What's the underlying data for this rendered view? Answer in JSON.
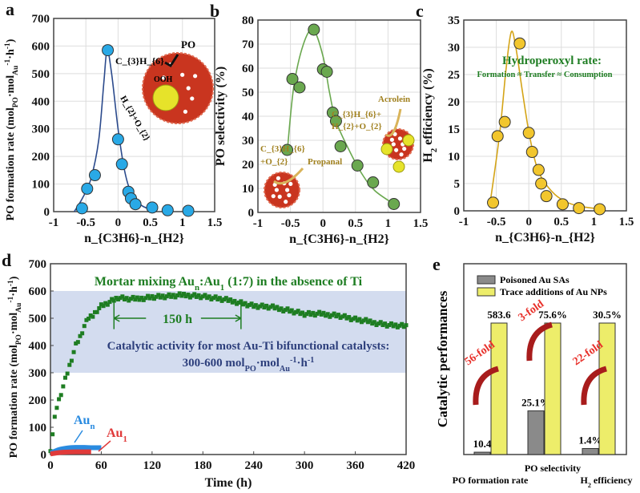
{
  "panel_labels": [
    "a",
    "b",
    "c",
    "d",
    "e"
  ],
  "colors": {
    "a": "#29a9e6",
    "a_line": "#2b4a8c",
    "b": "#6aa84f",
    "b_line": "#6aa84f",
    "c": "#f2c62d",
    "c_line": "#d4a417",
    "d_green": "#1e7d22",
    "d_blue": "#2a8be0",
    "d_red": "#e03a3a",
    "band": "#d3dcef",
    "band_text": "#2d3f7c",
    "fold_text": "#e8302a",
    "e_gray": "#8a8a8a",
    "e_yellow": "#eded6a"
  },
  "chart_data": [
    {
      "id": "a",
      "type": "scatter",
      "xlabel": "n_{C3H6}-n_{H2}",
      "ylabel": "PO formation rate (mol_{PO}·mol_{Au}^{-1}·h^{-1})",
      "xlim": [
        -1,
        1.5
      ],
      "ylim": [
        0,
        700
      ],
      "grid": true,
      "xticks": [
        "-1",
        "-0.5",
        "0",
        "0.5",
        "1",
        "1.5"
      ],
      "yticks": [
        "0",
        "100",
        "200",
        "300",
        "400",
        "500",
        "600",
        "700"
      ],
      "points": [
        [
          -0.56,
          12
        ],
        [
          -0.48,
          83
        ],
        [
          -0.36,
          132
        ],
        [
          -0.16,
          585
        ],
        [
          0,
          262
        ],
        [
          0.06,
          172
        ],
        [
          0.16,
          72
        ],
        [
          0.2,
          48
        ],
        [
          0.27,
          27
        ],
        [
          0.53,
          15
        ],
        [
          0.77,
          5
        ],
        [
          1.09,
          3
        ]
      ],
      "fit": [
        [
          -0.68,
          0
        ],
        [
          -0.55,
          50
        ],
        [
          -0.42,
          120
        ],
        [
          -0.3,
          260
        ],
        [
          -0.22,
          470
        ],
        [
          -0.17,
          585
        ],
        [
          -0.1,
          500
        ],
        [
          0,
          300
        ],
        [
          0.1,
          150
        ],
        [
          0.2,
          70
        ],
        [
          0.35,
          25
        ],
        [
          0.5,
          8
        ]
      ],
      "annotations": [
        "C_{3}H_{6}",
        "PO",
        "OOH",
        "H_{2}+O_{2}"
      ]
    },
    {
      "id": "b",
      "type": "scatter",
      "xlabel": "n_{C3H6}-n_{H2}",
      "ylabel": "PO selectivity (%)",
      "xlim": [
        -1,
        1.5
      ],
      "ylim": [
        0,
        80
      ],
      "grid": true,
      "xticks": [
        "-1",
        "-0.5",
        "0",
        "0.5",
        "1",
        "1.5"
      ],
      "yticks": [
        "0",
        "10",
        "20",
        "30",
        "40",
        "50",
        "60",
        "70",
        "80"
      ],
      "points": [
        [
          -0.55,
          26
        ],
        [
          -0.47,
          55.5
        ],
        [
          -0.36,
          52
        ],
        [
          -0.14,
          76
        ],
        [
          0,
          59.5
        ],
        [
          0.06,
          58.5
        ],
        [
          0.15,
          41.5
        ],
        [
          0.2,
          38
        ],
        [
          0.27,
          27.5
        ],
        [
          0.53,
          19.5
        ],
        [
          0.77,
          12.5
        ],
        [
          1.09,
          3.5
        ]
      ],
      "fit": [
        [
          -0.55,
          25
        ],
        [
          -0.45,
          52
        ],
        [
          -0.3,
          70
        ],
        [
          -0.15,
          76
        ],
        [
          0,
          65
        ],
        [
          0.1,
          50
        ],
        [
          0.2,
          38
        ],
        [
          0.4,
          26
        ],
        [
          0.6,
          16
        ],
        [
          0.8,
          9
        ],
        [
          1.09,
          3.5
        ]
      ],
      "annotations": [
        "C_{3}H_{6}",
        "+O_{2}",
        "Propanal",
        "C_{3}H_{6}+",
        "H_{2}+O_{2}",
        "Acrolein"
      ]
    },
    {
      "id": "c",
      "type": "scatter",
      "xlabel": "n_{C3H6}-n_{H2}",
      "ylabel": "H_{2} efficiency (%)",
      "xlim": [
        -1,
        1.5
      ],
      "ylim": [
        0,
        35
      ],
      "grid": true,
      "xticks": [
        "-1",
        "-0.5",
        "0",
        "0.5",
        "1",
        "1.5"
      ],
      "yticks": [
        "0",
        "5",
        "10",
        "15",
        "20",
        "25",
        "30",
        "35"
      ],
      "points": [
        [
          -0.55,
          1.5
        ],
        [
          -0.48,
          13.7
        ],
        [
          -0.37,
          16.3
        ],
        [
          -0.14,
          30.7
        ],
        [
          0,
          14.3
        ],
        [
          0.05,
          10.8
        ],
        [
          0.15,
          7.5
        ],
        [
          0.19,
          5
        ],
        [
          0.27,
          2.7
        ],
        [
          0.52,
          1.2
        ],
        [
          0.77,
          0.5
        ],
        [
          1.09,
          0.3
        ]
      ],
      "fit": [
        [
          -0.6,
          1
        ],
        [
          -0.45,
          14
        ],
        [
          -0.35,
          26
        ],
        [
          -0.27,
          32.8
        ],
        [
          -0.2,
          30
        ],
        [
          -0.1,
          22
        ],
        [
          0,
          14.5
        ],
        [
          0.1,
          9
        ],
        [
          0.2,
          6
        ],
        [
          0.4,
          3
        ],
        [
          0.6,
          1.5
        ],
        [
          0.8,
          0.8
        ],
        [
          1.05,
          0.4
        ]
      ],
      "annotations": [
        "Hydroperoxyl rate:",
        "Formation ≈ Transfer ≈ Consumption"
      ]
    },
    {
      "id": "d",
      "type": "scatter",
      "xlabel": "Time (h)",
      "ylabel": "PO formation rate (mol_{PO}·mol_{Au}^{-1}·h^{-1})",
      "xlim": [
        0,
        420
      ],
      "ylim": [
        0,
        700
      ],
      "grid": false,
      "xticks": [
        "0",
        "60",
        "120",
        "180",
        "240",
        "300",
        "360",
        "420"
      ],
      "yticks": [
        "0",
        "100",
        "200",
        "300",
        "400",
        "500",
        "600",
        "700"
      ],
      "band": [
        300,
        600
      ],
      "series": [
        {
          "name": "Mortar mixing Au_{n}:Au_{1} (1:7) in the absence of Ti",
          "values": [
            [
              0,
              20
            ],
            [
              2,
              65
            ],
            [
              4,
              105
            ],
            [
              6,
              160
            ],
            [
              10,
              200
            ],
            [
              15,
              250
            ],
            [
              20,
              300
            ],
            [
              25,
              350
            ],
            [
              30,
              400
            ],
            [
              35,
              430
            ],
            [
              40,
              470
            ],
            [
              45,
              500
            ],
            [
              50,
              510
            ],
            [
              55,
              530
            ],
            [
              60,
              545
            ],
            [
              70,
              560
            ],
            [
              80,
              575
            ],
            [
              90,
              570
            ],
            [
              100,
              570
            ],
            [
              120,
              578
            ],
            [
              140,
              580
            ],
            [
              160,
              585
            ],
            [
              180,
              580
            ],
            [
              200,
              570
            ],
            [
              220,
              560
            ],
            [
              240,
              545
            ],
            [
              260,
              540
            ],
            [
              280,
              530
            ],
            [
              300,
              515
            ],
            [
              320,
              515
            ],
            [
              340,
              510
            ],
            [
              360,
              495
            ],
            [
              380,
              485
            ],
            [
              400,
              475
            ],
            [
              420,
              470
            ]
          ]
        },
        {
          "name": "Au_{n}",
          "values": [
            [
              0,
              5
            ],
            [
              10,
              18
            ],
            [
              20,
              24
            ],
            [
              30,
              26
            ],
            [
              40,
              26
            ],
            [
              50,
              25
            ],
            [
              60,
              25
            ]
          ]
        },
        {
          "name": "Au_{1}",
          "values": [
            [
              0,
              2
            ],
            [
              10,
              7
            ],
            [
              20,
              9
            ],
            [
              30,
              10
            ],
            [
              40,
              10
            ],
            [
              48,
              10
            ]
          ]
        }
      ],
      "annotations": [
        "150 h",
        "Catalytic activity for most Au-Ti bifunctional catalysts:",
        "300-600 mol_{PO}·mol_{Au}^{-1}·h^{-1}"
      ]
    },
    {
      "id": "e",
      "type": "bar",
      "ylabel": "Catalytic performances",
      "categories": [
        "PO formation rate",
        "PO selectivity",
        "H_{2} efficiency"
      ],
      "series": [
        {
          "name": "Poisoned Au SAs",
          "values": [
            10.4,
            25.1,
            1.4
          ],
          "labels": [
            "10.4",
            "25.1%",
            "1.4%"
          ]
        },
        {
          "name": "Trace additions of Au NPs",
          "values": [
            583.6,
            75.6,
            30.5
          ],
          "labels": [
            "583.6",
            "75.6%",
            "30.5%"
          ]
        }
      ],
      "fold_labels": [
        "56-fold",
        "3-fold",
        "22-fold"
      ],
      "legend": "top-left"
    }
  ]
}
